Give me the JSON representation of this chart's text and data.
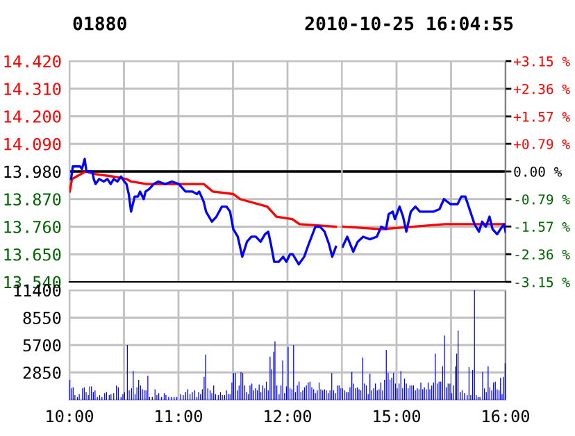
{
  "chart_data": [
    {
      "type": "line",
      "title": "01880",
      "tick_labels": "y",
      "grid": true,
      "marker": "none",
      "line_style": "solid",
      "xlim": [
        10,
        12.5
      ],
      "xticks": [
        {
          "value": 10,
          "label": null
        },
        {
          "value": 10.5,
          "label": null
        },
        {
          "value": 11,
          "label": null
        },
        {
          "value": 11.5,
          "label": null
        },
        {
          "value": 12,
          "label": null
        }
      ],
      "ylim": [
        13.54,
        14.42
      ],
      "yticks": [
        {
          "value": 13.54,
          "label": "13.540"
        },
        {
          "value": 13.65,
          "label": "13.650"
        },
        {
          "value": 13.76,
          "label": "13.760"
        },
        {
          "value": 13.87,
          "label": "13.870"
        },
        {
          "value": 13.98,
          "label": "13.980"
        },
        {
          "value": 14.09,
          "label": "14.090"
        },
        {
          "value": 14.2,
          "label": "14.200"
        },
        {
          "value": 14.31,
          "label": "14.310"
        },
        {
          "value": 14.42,
          "label": "14.420"
        }
      ],
      "ref_lines": [
        {
          "axis": "y",
          "value": 13.98,
          "color": "#000000"
        }
      ],
      "series": [
        {
          "color": "#0000ff",
          "x": [
            10.015,
            10.031,
            10.098,
            10.115,
            10.14,
            10.156,
            10.21,
            10.223,
            10.24,
            10.273,
            10.315,
            10.348,
            10.378,
            10.406,
            10.44,
            10.473,
            10.503,
            10.523,
            10.544,
            10.565,
            10.598,
            10.628,
            10.648,
            10.681,
            10.698,
            10.731,
            10.773,
            10.815,
            10.878,
            10.94,
            11.003,
            11.065,
            11.128,
            11.169,
            11.19,
            11.231,
            11.253,
            11.306,
            11.348,
            11.398,
            11.44,
            11.473,
            11.503,
            11.544,
            11.585,
            11.628,
            11.669,
            11.71,
            11.753,
            11.794,
            11.823,
            11.848,
            11.878,
            11.919,
            11.96,
            11.99,
            12.023,
            12.048,
            12.103,
            12.153,
            12.194,
            12.256,
            12.298,
            12.34,
            12.381,
            12.41,
            12.444
          ],
          "values": [
            13.95,
            14.0,
            14.0,
            13.99,
            14.03,
            13.98,
            13.98,
            13.95,
            13.93,
            13.95,
            13.94,
            13.95,
            13.93,
            13.95,
            13.94,
            13.96,
            13.94,
            13.93,
            13.89,
            13.82,
            13.88,
            13.88,
            13.9,
            13.87,
            13.9,
            13.91,
            13.93,
            13.94,
            13.93,
            13.94,
            13.93,
            13.9,
            13.9,
            13.89,
            13.9,
            13.86,
            13.82,
            13.78,
            13.8,
            13.84,
            13.84,
            13.82,
            13.75,
            13.72,
            13.64,
            13.7,
            13.72,
            13.72,
            13.7,
            13.73,
            13.74,
            13.69,
            13.62,
            13.62,
            13.64,
            13.62,
            13.65,
            13.65,
            13.61,
            13.64,
            13.69,
            13.76,
            13.76,
            13.74,
            13.69,
            13.64,
            13.68
          ]
        },
        {
          "color": "#ff0000",
          "x": [
            10.003,
            10.023,
            10.065,
            10.148,
            10.231,
            10.398,
            10.523,
            10.565,
            10.71,
            11.231,
            11.315,
            11.503,
            11.565,
            11.815,
            11.898,
            12.044,
            12.11,
            12.444
          ],
          "values": [
            13.9,
            13.95,
            13.96,
            13.98,
            13.97,
            13.96,
            13.95,
            13.94,
            13.93,
            13.93,
            13.9,
            13.89,
            13.87,
            13.84,
            13.8,
            13.79,
            13.77,
            13.76
          ]
        }
      ]
    },
    {
      "type": "line",
      "subtitle": "2010-10-25 16:04:55",
      "tick_labels": false,
      "grid": true,
      "marker": "none",
      "line_style": "solid",
      "xlim": [
        14.5,
        16
      ],
      "xticks": [
        {
          "value": 15,
          "label": null
        },
        {
          "value": 15.5,
          "label": null
        },
        {
          "value": 16,
          "label": null
        }
      ],
      "ylim": [
        13.54,
        14.42
      ],
      "yticks": [
        {
          "value": 13.54,
          "label": null
        },
        {
          "value": 13.65,
          "label": null
        },
        {
          "value": 13.76,
          "label": null
        },
        {
          "value": 13.87,
          "label": null
        },
        {
          "value": 13.98,
          "label": null
        },
        {
          "value": 14.09,
          "label": null
        },
        {
          "value": 14.2,
          "label": null
        },
        {
          "value": 14.31,
          "label": null
        },
        {
          "value": 14.42,
          "label": null
        }
      ],
      "y2lim": [
        -3.15,
        3.15
      ],
      "y2ticks": [
        {
          "value": -3.15,
          "label": "-3.15 %"
        },
        {
          "value": -2.36,
          "label": "-2.36 %"
        },
        {
          "value": -1.57,
          "label": "-1.57 %"
        },
        {
          "value": -0.79,
          "label": "-0.79 %"
        },
        {
          "value": 0,
          "label": "0.00 %"
        },
        {
          "value": 0.79,
          "label": "+0.79 %"
        },
        {
          "value": 1.57,
          "label": "+1.57 %"
        },
        {
          "value": 2.36,
          "label": "+2.36 %"
        },
        {
          "value": 3.15,
          "label": "+3.15 %"
        }
      ],
      "ref_lines": [
        {
          "axis": "y",
          "value": 13.98,
          "color": "#000000"
        }
      ],
      "series": [
        {
          "color": "#0000ff",
          "x": [
            14.506,
            14.548,
            14.603,
            14.644,
            14.694,
            14.756,
            14.819,
            14.86,
            14.903,
            14.928,
            14.965,
            14.985,
            15.028,
            15.06,
            15.09,
            15.131,
            15.173,
            15.215,
            15.278,
            15.34,
            15.394,
            15.435,
            15.494,
            15.56,
            15.594,
            15.631,
            15.685,
            15.715,
            15.756,
            15.785,
            15.819,
            15.853,
            15.881,
            15.923,
            15.953,
            15.985,
            16.0
          ],
          "values": [
            13.68,
            13.72,
            13.66,
            13.7,
            13.72,
            13.71,
            13.72,
            13.76,
            13.75,
            13.81,
            13.82,
            13.79,
            13.84,
            13.8,
            13.74,
            13.82,
            13.84,
            13.82,
            13.82,
            13.82,
            13.83,
            13.87,
            13.85,
            13.85,
            13.88,
            13.88,
            13.81,
            13.77,
            13.74,
            13.78,
            13.76,
            13.8,
            13.75,
            13.73,
            13.75,
            13.77,
            13.74
          ]
        },
        {
          "color": "#ff0000",
          "x": [
            14.506,
            14.86,
            15.444,
            15.569,
            16.0
          ],
          "values": [
            13.76,
            13.75,
            13.77,
            13.77,
            13.77
          ]
        }
      ]
    },
    {
      "type": "bar",
      "grid": true,
      "color": "#0000ff",
      "xlim": [
        10,
        12.5
      ],
      "xticks": [
        {
          "value": 10,
          "label": "10:00"
        },
        {
          "value": 10.5,
          "label": null
        },
        {
          "value": 11,
          "label": "11:00"
        },
        {
          "value": 11.5,
          "label": null
        },
        {
          "value": 12,
          "label": "12:00"
        }
      ],
      "ylim": [
        0,
        11400
      ],
      "yticks": [
        {
          "value": 0,
          "label": null
        },
        2850,
        5700,
        8550,
        11400
      ],
      "x": [
        10.003,
        10.019,
        10.034,
        10.05,
        10.073,
        10.09,
        10.12,
        10.136,
        10.153,
        10.173,
        10.186,
        10.202,
        10.219,
        10.235,
        10.256,
        10.277,
        10.298,
        10.323,
        10.34,
        10.365,
        10.381,
        10.406,
        10.431,
        10.448,
        10.473,
        10.49,
        10.506,
        10.531,
        10.548,
        10.569,
        10.585,
        10.602,
        10.619,
        10.635,
        10.652,
        10.669,
        10.685,
        10.702,
        10.719,
        10.735,
        10.76,
        10.785,
        10.802,
        10.819,
        10.844,
        10.869,
        10.885,
        10.91,
        10.935,
        10.96,
        10.985,
        11.019,
        11.044,
        11.065,
        11.085,
        11.106,
        11.127,
        11.148,
        11.169,
        11.185,
        11.202,
        11.219,
        11.235,
        11.248,
        11.269,
        11.29,
        11.306,
        11.323,
        11.34,
        11.365,
        11.385,
        11.402,
        11.423,
        11.44,
        11.456,
        11.473,
        11.49,
        11.506,
        11.523,
        11.54,
        11.556,
        11.573,
        11.59,
        11.606,
        11.623,
        11.64,
        11.656,
        11.673,
        11.69,
        11.706,
        11.723,
        11.74,
        11.756,
        11.773,
        11.79,
        11.806,
        11.823,
        11.84,
        11.856,
        11.873,
        11.885,
        11.902,
        11.923,
        11.94,
        11.956,
        11.973,
        11.99,
        12.006,
        12.023,
        12.04,
        12.056,
        12.073,
        12.09,
        12.106,
        12.123,
        12.14,
        12.156,
        12.173,
        12.19,
        12.206,
        12.223,
        12.24,
        12.256,
        12.273,
        12.29,
        12.306,
        12.323,
        12.34,
        12.356,
        12.373,
        12.39,
        12.406,
        12.423,
        12.44,
        12.456,
        12.473,
        12.49
      ],
      "values": [
        2100,
        1200,
        1300,
        500,
        300,
        600,
        1200,
        1300,
        800,
        500,
        1400,
        1400,
        800,
        1000,
        300,
        500,
        300,
        700,
        800,
        500,
        600,
        700,
        1500,
        1300,
        300,
        600,
        800,
        5700,
        1000,
        1200,
        3000,
        600,
        1300,
        2100,
        1500,
        1100,
        1000,
        1000,
        2500,
        300,
        300,
        1100,
        500,
        700,
        300,
        700,
        500,
        300,
        300,
        300,
        300,
        600,
        500,
        800,
        1100,
        600,
        800,
        1000,
        300,
        800,
        600,
        1100,
        2400,
        4700,
        1200,
        1000,
        700,
        1500,
        600,
        500,
        800,
        500,
        500,
        1000,
        600,
        600,
        1800,
        2800,
        2800,
        1000,
        1500,
        2900,
        2800,
        1500,
        800,
        600,
        1500,
        1700,
        1000,
        1200,
        1000,
        1600,
        800,
        1500,
        1200,
        1900,
        1000,
        4500,
        3200,
        5000,
        6100,
        1500,
        600,
        1500,
        4100,
        700,
        1400,
        5500,
        1200,
        1100,
        5700,
        800,
        1500,
        1900,
        800,
        1000,
        1300,
        1500,
        1800,
        1900,
        1300,
        1100,
        700,
        1000,
        1800,
        1100,
        1000,
        1100,
        1000,
        700,
        1000,
        2800,
        1000,
        700,
        1500,
        1500,
        1200
      ]
    },
    {
      "type": "bar",
      "tick_labels": "x",
      "grid": true,
      "color": "#0000ff",
      "xlim": [
        14.5,
        16
      ],
      "xticks": [
        {
          "value": 15,
          "label": "15:00"
        },
        {
          "value": 15.5,
          "label": null
        },
        {
          "value": 16,
          "label": "16:00"
        }
      ],
      "ylim": [
        0,
        11400
      ],
      "yticks": [
        {
          "value": 0,
          "label": null
        },
        2850,
        5700,
        8550,
        11400
      ],
      "x": [
        14.506,
        14.523,
        14.54,
        14.556,
        14.573,
        14.59,
        14.606,
        14.623,
        14.64,
        14.656,
        14.673,
        14.69,
        14.706,
        14.723,
        14.74,
        14.756,
        14.773,
        14.79,
        14.806,
        14.823,
        14.84,
        14.856,
        14.873,
        14.89,
        14.906,
        14.923,
        14.94,
        14.956,
        14.973,
        14.99,
        15.006,
        15.023,
        15.04,
        15.056,
        15.073,
        15.09,
        15.106,
        15.123,
        15.14,
        15.156,
        15.173,
        15.19,
        15.206,
        15.223,
        15.24,
        15.256,
        15.273,
        15.29,
        15.306,
        15.323,
        15.34,
        15.356,
        15.373,
        15.39,
        15.406,
        15.423,
        15.44,
        15.456,
        15.473,
        15.49,
        15.506,
        15.523,
        15.54,
        15.552,
        15.565,
        15.585,
        15.602,
        15.623,
        15.648,
        15.665,
        15.681,
        15.698,
        15.715,
        15.731,
        15.748,
        15.765,
        15.79,
        15.806,
        15.823,
        15.84,
        15.856,
        15.873,
        15.89,
        15.906,
        15.923,
        15.94,
        15.954,
        15.968,
        15.982,
        15.996
      ],
      "values": [
        1200,
        1000,
        800,
        800,
        1300,
        2900,
        1700,
        1200,
        1300,
        1100,
        1000,
        4400,
        1700,
        1500,
        600,
        2700,
        1000,
        1200,
        1700,
        1000,
        1100,
        1800,
        1000,
        2100,
        5200,
        2800,
        2100,
        2300,
        2800,
        1700,
        1200,
        1700,
        3000,
        1200,
        2200,
        1700,
        1200,
        1500,
        1500,
        1500,
        1000,
        1200,
        1100,
        1800,
        1100,
        1300,
        1100,
        1800,
        1100,
        1500,
        1800,
        4800,
        1700,
        1900,
        1900,
        3500,
        6700,
        1300,
        1700,
        1700,
        700,
        1500,
        3500,
        4800,
        7200,
        800,
        1000,
        700,
        500,
        3400,
        500,
        3100,
        11400,
        500,
        300,
        300,
        2900,
        1200,
        800,
        3500,
        1300,
        1000,
        1800,
        1900,
        1100,
        1000,
        2300,
        600,
        2400,
        3800
      ]
    }
  ]
}
